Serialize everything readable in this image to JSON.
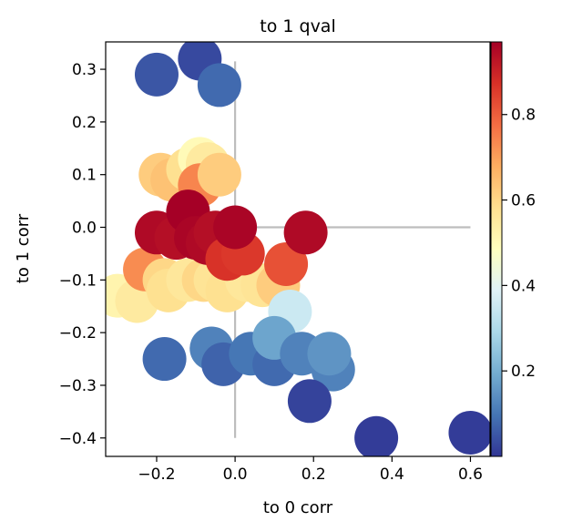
{
  "chart_data": {
    "type": "scatter",
    "title": "to 1 qval",
    "xlabel": "to 0 corr",
    "ylabel": "to 1 corr",
    "xlim": [
      -0.33,
      0.65
    ],
    "ylim": [
      -0.435,
      0.352
    ],
    "xticks": [
      -0.2,
      0.0,
      0.2,
      0.4,
      0.6
    ],
    "xtick_labels": [
      "−0.2",
      "0.0",
      "0.2",
      "0.4",
      "0.6"
    ],
    "yticks": [
      -0.4,
      -0.3,
      -0.2,
      -0.1,
      0.0,
      0.1,
      0.2,
      0.3
    ],
    "ytick_labels": [
      "−0.4",
      "−0.3",
      "−0.2",
      "−0.1",
      "0.0",
      "0.1",
      "0.2",
      "0.3"
    ],
    "reference_lines": {
      "vertical": {
        "x": 0.0,
        "y_range": [
          -0.4,
          0.315
        ]
      },
      "horizontal": {
        "y": 0.0,
        "x_range": [
          -0.2,
          0.6
        ]
      },
      "color": "#bdbdbd"
    },
    "colorbar": {
      "label": "",
      "range": [
        0.0,
        0.97
      ],
      "ticks": [
        0.2,
        0.4,
        0.6,
        0.8
      ],
      "tick_labels": [
        "0.2",
        "0.4",
        "0.6",
        "0.8"
      ],
      "colormap": "RdYlBu_r",
      "colormap_stops": [
        "#313695",
        "#4575b4",
        "#74add1",
        "#abd9e9",
        "#e0f3f8",
        "#ffffbf",
        "#fee090",
        "#fdae61",
        "#f46d43",
        "#d73027",
        "#a50026"
      ]
    },
    "points": [
      {
        "x": -0.3,
        "y": -0.13,
        "c": 0.52
      },
      {
        "x": -0.25,
        "y": -0.14,
        "c": 0.55
      },
      {
        "x": -0.23,
        "y": -0.08,
        "c": 0.73
      },
      {
        "x": -0.18,
        "y": -0.1,
        "c": 0.6
      },
      {
        "x": -0.17,
        "y": -0.12,
        "c": 0.58
      },
      {
        "x": -0.12,
        "y": -0.1,
        "c": 0.56
      },
      {
        "x": -0.08,
        "y": -0.1,
        "c": 0.6
      },
      {
        "x": -0.05,
        "y": -0.1,
        "c": 0.57
      },
      {
        "x": -0.02,
        "y": -0.12,
        "c": 0.58
      },
      {
        "x": 0.03,
        "y": -0.1,
        "c": 0.56
      },
      {
        "x": 0.07,
        "y": -0.11,
        "c": 0.57
      },
      {
        "x": 0.11,
        "y": -0.11,
        "c": 0.62
      },
      {
        "x": -0.19,
        "y": 0.1,
        "c": 0.62
      },
      {
        "x": -0.16,
        "y": 0.09,
        "c": 0.64
      },
      {
        "x": -0.12,
        "y": 0.11,
        "c": 0.58
      },
      {
        "x": -0.09,
        "y": 0.13,
        "c": 0.5
      },
      {
        "x": -0.07,
        "y": 0.12,
        "c": 0.55
      },
      {
        "x": -0.09,
        "y": 0.08,
        "c": 0.74
      },
      {
        "x": -0.04,
        "y": 0.1,
        "c": 0.62
      },
      {
        "x": -0.2,
        "y": -0.01,
        "c": 0.95
      },
      {
        "x": -0.15,
        "y": -0.02,
        "c": 0.94
      },
      {
        "x": -0.12,
        "y": 0.03,
        "c": 0.97
      },
      {
        "x": -0.1,
        "y": -0.02,
        "c": 0.96
      },
      {
        "x": -0.07,
        "y": -0.03,
        "c": 0.95
      },
      {
        "x": -0.05,
        "y": -0.01,
        "c": 0.94
      },
      {
        "x": -0.02,
        "y": -0.06,
        "c": 0.87
      },
      {
        "x": 0.02,
        "y": -0.05,
        "c": 0.86
      },
      {
        "x": 0.0,
        "y": 0.0,
        "c": 0.96
      },
      {
        "x": 0.13,
        "y": -0.07,
        "c": 0.82
      },
      {
        "x": 0.18,
        "y": -0.01,
        "c": 0.95
      },
      {
        "x": 0.14,
        "y": -0.16,
        "c": 0.35
      },
      {
        "x": -0.2,
        "y": 0.29,
        "c": 0.05
      },
      {
        "x": -0.09,
        "y": 0.32,
        "c": 0.03
      },
      {
        "x": -0.04,
        "y": 0.27,
        "c": 0.08
      },
      {
        "x": -0.18,
        "y": -0.25,
        "c": 0.08
      },
      {
        "x": -0.06,
        "y": -0.23,
        "c": 0.12
      },
      {
        "x": -0.03,
        "y": -0.26,
        "c": 0.07
      },
      {
        "x": 0.04,
        "y": -0.24,
        "c": 0.1
      },
      {
        "x": 0.1,
        "y": -0.26,
        "c": 0.08
      },
      {
        "x": 0.1,
        "y": -0.21,
        "c": 0.18
      },
      {
        "x": 0.17,
        "y": -0.24,
        "c": 0.12
      },
      {
        "x": 0.25,
        "y": -0.27,
        "c": 0.12
      },
      {
        "x": 0.24,
        "y": -0.24,
        "c": 0.15
      },
      {
        "x": 0.19,
        "y": -0.33,
        "c": 0.02
      },
      {
        "x": 0.36,
        "y": -0.4,
        "c": 0.01
      },
      {
        "x": 0.6,
        "y": -0.39,
        "c": 0.01
      }
    ]
  }
}
